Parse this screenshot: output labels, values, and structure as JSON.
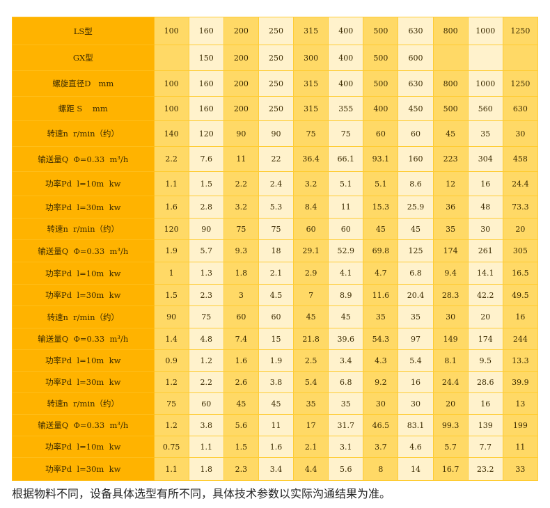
{
  "colors": {
    "header_col": "#FFB300",
    "col_dark": "#FFD966",
    "col_light": "#FFF2CC"
  },
  "rows": [
    {
      "label": "LS型",
      "values": [
        "100",
        "160",
        "200",
        "250",
        "315",
        "400",
        "500",
        "630",
        "800",
        "1000",
        "1250"
      ]
    },
    {
      "label": "GX型",
      "values": [
        "",
        "150",
        "200",
        "250",
        "300",
        "400",
        "500",
        "600",
        "",
        "",
        ""
      ]
    },
    {
      "label": "螺旋直径D   mm",
      "values": [
        "100",
        "160",
        "200",
        "250",
        "315",
        "400",
        "500",
        "630",
        "800",
        "1000",
        "1250"
      ]
    },
    {
      "label": "螺距 S    mm",
      "values": [
        "100",
        "160",
        "200",
        "250",
        "315",
        "355",
        "400",
        "450",
        "500",
        "560",
        "630"
      ]
    },
    {
      "label": "转速n  r/min（约）",
      "values": [
        "140",
        "120",
        "90",
        "90",
        "75",
        "75",
        "60",
        "60",
        "45",
        "35",
        "30"
      ]
    },
    {
      "label": "输送量Q  Φ=0.33  m³/h",
      "values": [
        "2.2",
        "7.6",
        "11",
        "22",
        "36.4",
        "66.1",
        "93.1",
        "160",
        "223",
        "304",
        "458"
      ]
    },
    {
      "label": "功率Pd  l=10m  kw",
      "values": [
        "1.1",
        "1.5",
        "2.2",
        "2.4",
        "3.2",
        "5.1",
        "5.1",
        "8.6",
        "12",
        "16",
        "24.4"
      ]
    },
    {
      "label": "功率Pd  l=30m  kw",
      "values": [
        "1.6",
        "2.8",
        "3.2",
        "5.3",
        "8.4",
        "11",
        "15.3",
        "25.9",
        "36",
        "48",
        "73.3"
      ]
    },
    {
      "label": "转速n  r/min（约）",
      "values": [
        "120",
        "90",
        "75",
        "75",
        "60",
        "60",
        "45",
        "45",
        "35",
        "30",
        "20"
      ]
    },
    {
      "label": "输送量Q  Φ=0.33  m³/h",
      "values": [
        "1.9",
        "5.7",
        "9.3",
        "18",
        "29.1",
        "52.9",
        "69.8",
        "125",
        "174",
        "261",
        "305"
      ]
    },
    {
      "label": "功率Pd  l=10m  kw",
      "values": [
        "1",
        "1.3",
        "1.8",
        "2.1",
        "2.9",
        "4.1",
        "4.7",
        "6.8",
        "9.4",
        "14.1",
        "16.5"
      ]
    },
    {
      "label": "功率Pd  l=30m  kw",
      "values": [
        "1.5",
        "2.3",
        "3",
        "4.5",
        "7",
        "8.9",
        "11.6",
        "20.4",
        "28.3",
        "42.2",
        "49.5"
      ]
    },
    {
      "label": "转速n  r/min（约）",
      "values": [
        "90",
        "75",
        "60",
        "60",
        "45",
        "45",
        "35",
        "35",
        "30",
        "20",
        "16"
      ]
    },
    {
      "label": "输送量Q  Φ=0.33  m³/h",
      "values": [
        "1.4",
        "4.8",
        "7.4",
        "15",
        "21.8",
        "39.6",
        "54.3",
        "97",
        "149",
        "174",
        "244"
      ]
    },
    {
      "label": "功率Pd  l=10m  kw",
      "values": [
        "0.9",
        "1.2",
        "1.6",
        "1.9",
        "2.5",
        "3.4",
        "4.3",
        "5.4",
        "8.1",
        "9.5",
        "13.3"
      ]
    },
    {
      "label": "功率Pd  l=30m  kw",
      "values": [
        "1.2",
        "2.2",
        "2.6",
        "3.8",
        "5.4",
        "6.8",
        "9.2",
        "16",
        "24.4",
        "28.6",
        "39.9"
      ]
    },
    {
      "label": "转速n  r/min（约）",
      "values": [
        "75",
        "60",
        "45",
        "45",
        "35",
        "35",
        "30",
        "30",
        "20",
        "16",
        "13"
      ]
    },
    {
      "label": "输送量Q  Φ=0.33  m³/h",
      "values": [
        "1.2",
        "3.8",
        "5.6",
        "11",
        "17",
        "31.7",
        "46.5",
        "83.1",
        "99.3",
        "139",
        "199"
      ]
    },
    {
      "label": "功率Pd  l=10m  kw",
      "values": [
        "0.75",
        "1.1",
        "1.5",
        "1.6",
        "2.1",
        "3.1",
        "3.7",
        "4.6",
        "5.7",
        "7.7",
        "11"
      ]
    },
    {
      "label": "功率Pd  l=30m  kw",
      "values": [
        "1.1",
        "1.8",
        "2.3",
        "3.4",
        "4.4",
        "5.6",
        "8",
        "14",
        "16.7",
        "23.2",
        "33"
      ]
    }
  ],
  "note": "根据物料不同，设备具体选型有所不同，具体技术参数以实际沟通结果为准。"
}
